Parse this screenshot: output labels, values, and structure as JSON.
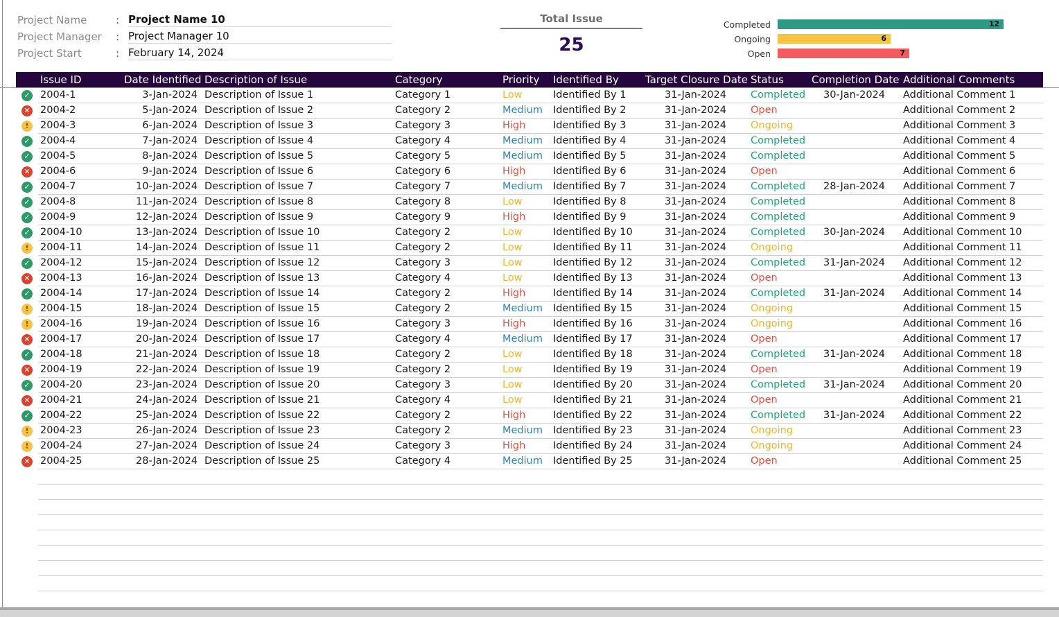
{
  "project": {
    "name_label": "Project Name",
    "name_value": "Project Name 10",
    "manager_label": "Project Manager",
    "manager_value": "Project Manager 10",
    "start_label": "Project Start",
    "start_value": "February 14, 2024",
    "separator": ":"
  },
  "total": {
    "title": "Total Issue",
    "value": "25"
  },
  "status_summary": [
    {
      "label": "Completed",
      "count": 12,
      "color": "#2e9a86"
    },
    {
      "label": "Ongoing",
      "count": 6,
      "color": "#f7c443"
    },
    {
      "label": "Open",
      "count": 7,
      "color": "#f45b5f"
    }
  ],
  "colors": {
    "header_bg": "#25073d",
    "priority_low": "#f0b429",
    "priority_medium": "#2e86c1",
    "priority_high": "#e74c3c",
    "status_completed": "#20a57a",
    "status_ongoing": "#f0b429",
    "status_open": "#e74c3c"
  },
  "table": {
    "headers": [
      "Issue ID",
      "Date Identified",
      "Description of Issue",
      "Category",
      "Priority",
      "Identified By",
      "Target Closure Date",
      "Status",
      "Completion Date",
      "Additional Comments"
    ],
    "rows": [
      [
        "2004-1",
        "3-Jan-2024",
        "Description of Issue 1",
        "Category 1",
        "Low",
        "Identified By 1",
        "31-Jan-2024",
        "Completed",
        "30-Jan-2024",
        "Additional Comment 1"
      ],
      [
        "2004-2",
        "5-Jan-2024",
        "Description of Issue 2",
        "Category 2",
        "Medium",
        "Identified By 2",
        "31-Jan-2024",
        "Open",
        "",
        "Additional Comment 2"
      ],
      [
        "2004-3",
        "6-Jan-2024",
        "Description of Issue 3",
        "Category 3",
        "High",
        "Identified By 3",
        "31-Jan-2024",
        "Ongoing",
        "",
        "Additional Comment 3"
      ],
      [
        "2004-4",
        "7-Jan-2024",
        "Description of Issue 4",
        "Category 4",
        "Medium",
        "Identified By 4",
        "31-Jan-2024",
        "Completed",
        "",
        "Additional Comment 4"
      ],
      [
        "2004-5",
        "8-Jan-2024",
        "Description of Issue 5",
        "Category 5",
        "Medium",
        "Identified By 5",
        "31-Jan-2024",
        "Completed",
        "",
        "Additional Comment 5"
      ],
      [
        "2004-6",
        "9-Jan-2024",
        "Description of Issue 6",
        "Category 6",
        "High",
        "Identified By 6",
        "31-Jan-2024",
        "Open",
        "",
        "Additional Comment 6"
      ],
      [
        "2004-7",
        "10-Jan-2024",
        "Description of Issue 7",
        "Category 7",
        "Medium",
        "Identified By 7",
        "31-Jan-2024",
        "Completed",
        "28-Jan-2024",
        "Additional Comment 7"
      ],
      [
        "2004-8",
        "11-Jan-2024",
        "Description of Issue 8",
        "Category 8",
        "Low",
        "Identified By 8",
        "31-Jan-2024",
        "Completed",
        "",
        "Additional Comment 8"
      ],
      [
        "2004-9",
        "12-Jan-2024",
        "Description of Issue 9",
        "Category 9",
        "High",
        "Identified By 9",
        "31-Jan-2024",
        "Completed",
        "",
        "Additional Comment 9"
      ],
      [
        "2004-10",
        "13-Jan-2024",
        "Description of Issue 10",
        "Category 2",
        "Low",
        "Identified By 10",
        "31-Jan-2024",
        "Completed",
        "30-Jan-2024",
        "Additional Comment 10"
      ],
      [
        "2004-11",
        "14-Jan-2024",
        "Description of Issue 11",
        "Category 2",
        "Low",
        "Identified By 11",
        "31-Jan-2024",
        "Ongoing",
        "",
        "Additional Comment 11"
      ],
      [
        "2004-12",
        "15-Jan-2024",
        "Description of Issue 12",
        "Category 3",
        "Low",
        "Identified By 12",
        "31-Jan-2024",
        "Completed",
        "31-Jan-2024",
        "Additional Comment 12"
      ],
      [
        "2004-13",
        "16-Jan-2024",
        "Description of Issue 13",
        "Category 4",
        "Low",
        "Identified By 13",
        "31-Jan-2024",
        "Open",
        "",
        "Additional Comment 13"
      ],
      [
        "2004-14",
        "17-Jan-2024",
        "Description of Issue 14",
        "Category 2",
        "High",
        "Identified By 14",
        "31-Jan-2024",
        "Completed",
        "31-Jan-2024",
        "Additional Comment 14"
      ],
      [
        "2004-15",
        "18-Jan-2024",
        "Description of Issue 15",
        "Category 2",
        "Medium",
        "Identified By 15",
        "31-Jan-2024",
        "Ongoing",
        "",
        "Additional Comment 15"
      ],
      [
        "2004-16",
        "19-Jan-2024",
        "Description of Issue 16",
        "Category 3",
        "High",
        "Identified By 16",
        "31-Jan-2024",
        "Ongoing",
        "",
        "Additional Comment 16"
      ],
      [
        "2004-17",
        "20-Jan-2024",
        "Description of Issue 17",
        "Category 4",
        "Medium",
        "Identified By 17",
        "31-Jan-2024",
        "Open",
        "",
        "Additional Comment 17"
      ],
      [
        "2004-18",
        "21-Jan-2024",
        "Description of Issue 18",
        "Category 2",
        "Low",
        "Identified By 18",
        "31-Jan-2024",
        "Completed",
        "31-Jan-2024",
        "Additional Comment 18"
      ],
      [
        "2004-19",
        "22-Jan-2024",
        "Description of Issue 19",
        "Category 2",
        "Low",
        "Identified By 19",
        "31-Jan-2024",
        "Open",
        "",
        "Additional Comment 19"
      ],
      [
        "2004-20",
        "23-Jan-2024",
        "Description of Issue 20",
        "Category 3",
        "Low",
        "Identified By 20",
        "31-Jan-2024",
        "Completed",
        "31-Jan-2024",
        "Additional Comment 20"
      ],
      [
        "2004-21",
        "24-Jan-2024",
        "Description of Issue 21",
        "Category 4",
        "Low",
        "Identified By 21",
        "31-Jan-2024",
        "Open",
        "",
        "Additional Comment 21"
      ],
      [
        "2004-22",
        "25-Jan-2024",
        "Description of Issue 22",
        "Category 2",
        "High",
        "Identified By 22",
        "31-Jan-2024",
        "Completed",
        "31-Jan-2024",
        "Additional Comment 22"
      ],
      [
        "2004-23",
        "26-Jan-2024",
        "Description of Issue 23",
        "Category 2",
        "Medium",
        "Identified By 23",
        "31-Jan-2024",
        "Ongoing",
        "",
        "Additional Comment 23"
      ],
      [
        "2004-24",
        "27-Jan-2024",
        "Description of Issue 24",
        "Category 3",
        "High",
        "Identified By 24",
        "31-Jan-2024",
        "Ongoing",
        "",
        "Additional Comment 24"
      ],
      [
        "2004-25",
        "28-Jan-2024",
        "Description of Issue 25",
        "Category 4",
        "Medium",
        "Identified By 25",
        "31-Jan-2024",
        "Open",
        "",
        "Additional Comment 25"
      ]
    ]
  }
}
